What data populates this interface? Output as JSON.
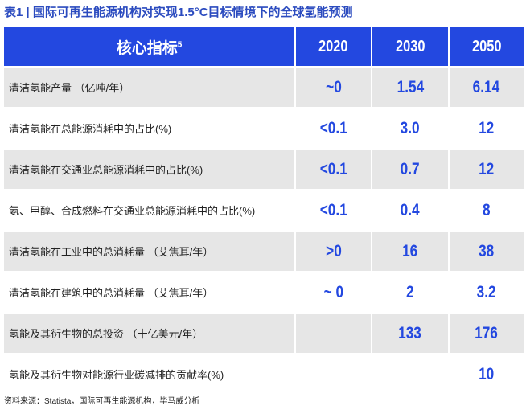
{
  "title": "表1 | 国际可再生能源机构对实现1.5°C目标情境下的全球氢能预测",
  "header": {
    "indicator": "核心指标",
    "footnote": "5",
    "years": [
      "2020",
      "2030",
      "2050"
    ]
  },
  "rows": [
    {
      "label": "清洁氢能产量 （亿吨/年）",
      "v2020": "~0",
      "v2030": "1.54",
      "v2050": "6.14"
    },
    {
      "label": "清洁氢能在总能源消耗中的占比(%)",
      "v2020": "<0.1",
      "v2030": "3.0",
      "v2050": "12"
    },
    {
      "label": "清洁氢能在交通业总能源消耗中的占比(%)",
      "v2020": "<0.1",
      "v2030": "0.7",
      "v2050": "12"
    },
    {
      "label": "氨、甲醇、合成燃料在交通业总能源消耗中的占比(%)",
      "v2020": "<0.1",
      "v2030": "0.4",
      "v2050": "8"
    },
    {
      "label": "清洁氢能在工业中的总消耗量 （艾焦耳/年）",
      "v2020": ">0",
      "v2030": "16",
      "v2050": "38"
    },
    {
      "label": "清洁氢能在建筑中的总消耗量 （艾焦耳/年）",
      "v2020": "~ 0",
      "v2030": "2",
      "v2050": "3.2"
    },
    {
      "label": "氢能及其衍生物的总投资 （十亿美元/年）",
      "v2020": "",
      "v2030": "133",
      "v2050": "176"
    },
    {
      "label": "氢能及其衍生物对能源行业碳减排的贡献率(%)",
      "v2020": "",
      "v2030": "",
      "v2050": "10"
    }
  ],
  "source": "资料来源：Statista，国际可再生能源机构，毕马威分析"
}
